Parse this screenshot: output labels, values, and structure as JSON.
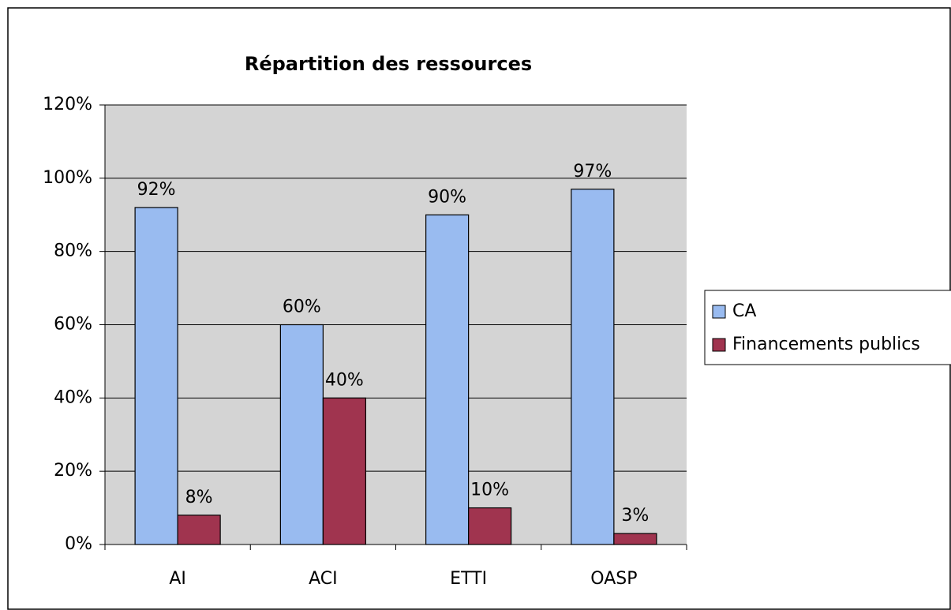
{
  "chart_data": {
    "type": "bar",
    "title": "Répartition des ressources",
    "categories": [
      "AI",
      "ACI",
      "ETTI",
      "OASP"
    ],
    "series": [
      {
        "name": "CA",
        "color": "#99bbf0",
        "values": [
          92,
          60,
          90,
          97
        ],
        "value_labels": [
          "92%",
          "60%",
          "90%",
          "97%"
        ]
      },
      {
        "name": "Financements publics",
        "color": "#a0344f",
        "values": [
          8,
          40,
          10,
          3
        ],
        "value_labels": [
          "8%",
          "40%",
          "10%",
          "3%"
        ]
      }
    ],
    "ylim": [
      0,
      120
    ],
    "yticks": [
      {
        "value": 0,
        "label": "0%"
      },
      {
        "value": 20,
        "label": "20%"
      },
      {
        "value": 40,
        "label": "40%"
      },
      {
        "value": 60,
        "label": "60%"
      },
      {
        "value": 80,
        "label": "80%"
      },
      {
        "value": 100,
        "label": "100%"
      },
      {
        "value": 120,
        "label": "120%"
      }
    ],
    "grid": true,
    "legend": "right"
  }
}
